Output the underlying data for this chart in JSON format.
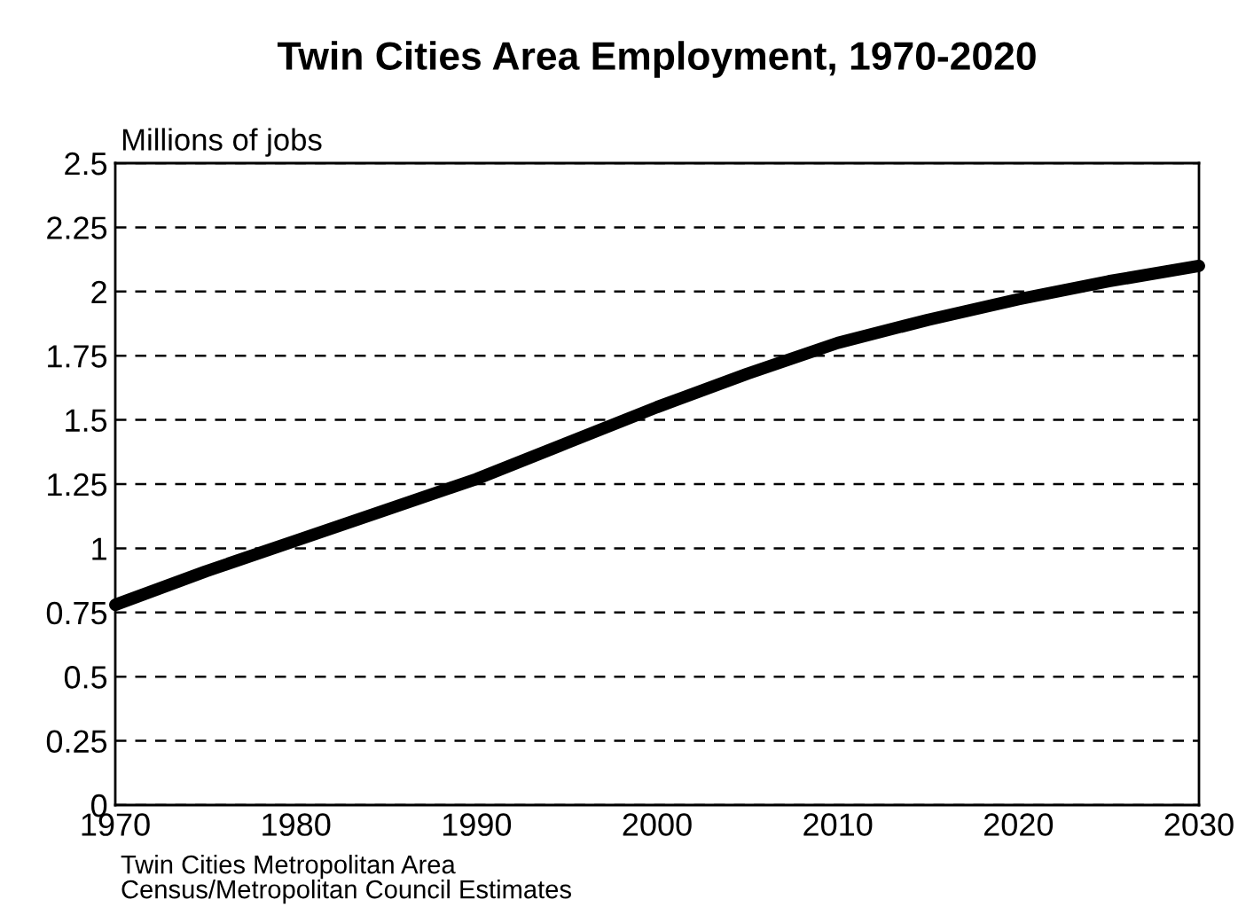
{
  "chart_data": {
    "type": "line",
    "title": "Twin Cities Area Employment, 1970-2020",
    "ylabel": "Millions of jobs",
    "x": [
      1970,
      1975,
      1980,
      1985,
      1990,
      1995,
      2000,
      2005,
      2010,
      2015,
      2020,
      2025,
      2030
    ],
    "series": [
      {
        "color": "#000000",
        "values": [
          0.78,
          0.91,
          1.03,
          1.15,
          1.27,
          1.41,
          1.55,
          1.68,
          1.8,
          1.89,
          1.97,
          2.04,
          2.1
        ]
      }
    ],
    "xlim": [
      1970,
      2030
    ],
    "xticks": [
      1970,
      1980,
      1990,
      2000,
      2010,
      2020,
      2030
    ],
    "ylim": [
      0,
      2.5
    ],
    "yticks": [
      0,
      0.25,
      0.5,
      0.75,
      1,
      1.25,
      1.5,
      1.75,
      2,
      2.25,
      2.5
    ],
    "grid": "y",
    "line_style": "solid",
    "marker": "none",
    "annotations": [
      "Twin Cities Metropolitan Area",
      "Census/Metropolitan Council Estimates"
    ]
  }
}
